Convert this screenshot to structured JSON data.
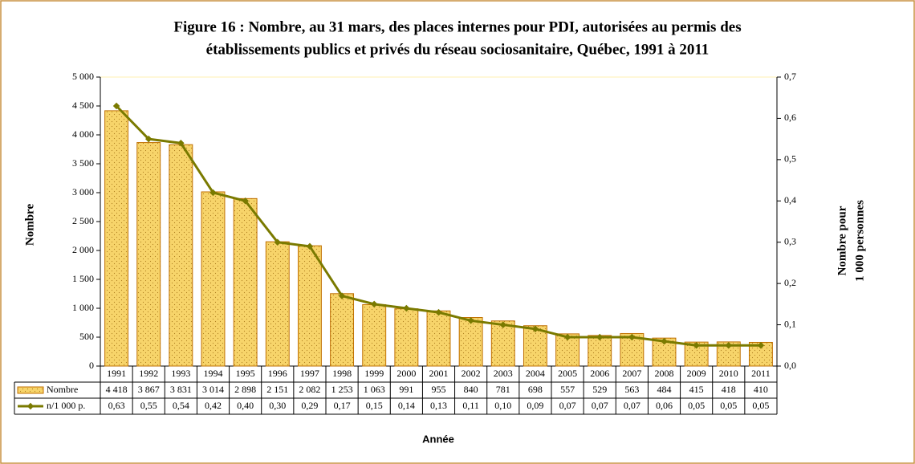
{
  "chart_data": {
    "type": "bar-line",
    "title": [
      "Figure 16 : Nombre, au 31 mars, des places internes pour PDI, autorisées au permis des",
      "établissements publics et privés du réseau sociosanitaire, Québec, 1991 à 2011"
    ],
    "x_label": "Année",
    "y_label": "Nombre",
    "y2_label": [
      "Nombre pour",
      "1 000 personnes"
    ],
    "categories": [
      "1991",
      "1992",
      "1993",
      "1994",
      "1995",
      "1996",
      "1997",
      "1998",
      "1999",
      "2000",
      "2001",
      "2002",
      "2003",
      "2004",
      "2005",
      "2006",
      "2007",
      "2008",
      "2009",
      "2010",
      "2011"
    ],
    "series": [
      {
        "name": "Nombre",
        "type": "bar",
        "color": "#f7d46a",
        "edge": "#c07000",
        "values": [
          4418,
          3867,
          3831,
          3014,
          2898,
          2151,
          2082,
          1253,
          1063,
          991,
          955,
          840,
          781,
          698,
          557,
          529,
          563,
          484,
          415,
          418,
          410
        ],
        "value_labels": [
          "4 418",
          "3 867",
          "3 831",
          "3 014",
          "2 898",
          "2 151",
          "2 082",
          "1 253",
          "1 063",
          "991",
          "955",
          "840",
          "781",
          "698",
          "557",
          "529",
          "563",
          "484",
          "415",
          "418",
          "410"
        ]
      },
      {
        "name": "n/1 000 p.",
        "type": "line",
        "axis": "y2",
        "color": "#7a7a00",
        "values": [
          0.63,
          0.55,
          0.54,
          0.42,
          0.4,
          0.3,
          0.29,
          0.17,
          0.15,
          0.14,
          0.13,
          0.11,
          0.1,
          0.09,
          0.07,
          0.07,
          0.07,
          0.06,
          0.05,
          0.05,
          0.05
        ],
        "value_labels": [
          "0,63",
          "0,55",
          "0,54",
          "0,42",
          "0,40",
          "0,30",
          "0,29",
          "0,17",
          "0,15",
          "0,14",
          "0,13",
          "0,11",
          "0,10",
          "0,09",
          "0,07",
          "0,07",
          "0,07",
          "0,06",
          "0,05",
          "0,05",
          "0,05"
        ]
      }
    ],
    "ylim": [
      0,
      5000
    ],
    "yticks": [
      0,
      500,
      {
        "value": 1000,
        "label": "1 000"
      },
      {
        "value": 1500,
        "label": "1 500"
      },
      {
        "value": 2000,
        "label": "2 000"
      },
      {
        "value": 2500,
        "label": "2 500"
      },
      {
        "value": 3000,
        "label": "3 000"
      },
      {
        "value": 3500,
        "label": "3 500"
      },
      {
        "value": 4000,
        "label": "4 000"
      },
      {
        "value": 4500,
        "label": "4 500"
      },
      {
        "value": 5000,
        "label": "5 000"
      }
    ],
    "y2lim": [
      0,
      0.7
    ],
    "y2ticks": [
      {
        "value": 0,
        "label": "0,0"
      },
      {
        "value": 0.1,
        "label": "0,1"
      },
      {
        "value": 0.2,
        "label": "0,2"
      },
      {
        "value": 0.3,
        "label": "0,3"
      },
      {
        "value": 0.4,
        "label": "0,4"
      },
      {
        "value": 0.5,
        "label": "0,5"
      },
      {
        "value": 0.6,
        "label": "0,6"
      },
      {
        "value": 0.7,
        "label": "0,7"
      }
    ],
    "grid": false
  }
}
